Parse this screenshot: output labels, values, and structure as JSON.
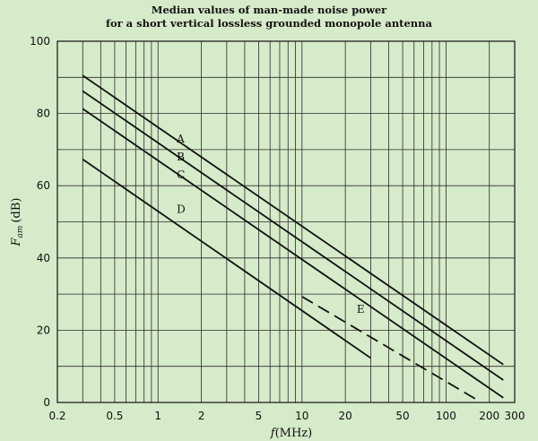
{
  "chart_data": {
    "type": "line",
    "title_line1": "Median values of man-made noise power",
    "title_line2": "for a short vertical lossless grounded monopole antenna",
    "xlabel_main": "f",
    "xlabel_unit": "(MHz)",
    "ylabel_main": "F",
    "ylabel_sub": "am",
    "ylabel_unit": "(dB)",
    "xscale": "log",
    "xlim": [
      0.2,
      300
    ],
    "ylim": [
      0,
      100
    ],
    "grid": true,
    "x_ticks": [
      {
        "value": 0.2,
        "label": "0.2"
      },
      {
        "value": 0.5,
        "label": "0.5"
      },
      {
        "value": 1,
        "label": "1"
      },
      {
        "value": 2,
        "label": "2"
      },
      {
        "value": 5,
        "label": "5"
      },
      {
        "value": 10,
        "label": "10"
      },
      {
        "value": 20,
        "label": "20"
      },
      {
        "value": 50,
        "label": "50"
      },
      {
        "value": 100,
        "label": "100"
      },
      {
        "value": 200,
        "label": "200"
      },
      {
        "value": 300,
        "label": "300"
      }
    ],
    "y_ticks": [
      {
        "value": 0,
        "label": "0"
      },
      {
        "value": 20,
        "label": "20"
      },
      {
        "value": 40,
        "label": "40"
      },
      {
        "value": 60,
        "label": "60"
      },
      {
        "value": 80,
        "label": "80"
      },
      {
        "value": 100,
        "label": "100"
      }
    ],
    "series": [
      {
        "name": "A",
        "x": [
          0.3,
          250
        ],
        "y": [
          90.5,
          10.5
        ],
        "dashed": false,
        "label_at": [
          1.35,
          72
        ]
      },
      {
        "name": "B",
        "x": [
          0.3,
          250
        ],
        "y": [
          86.2,
          6.2
        ],
        "dashed": false,
        "label_at": [
          1.35,
          67
        ]
      },
      {
        "name": "C",
        "x": [
          0.3,
          250
        ],
        "y": [
          81.3,
          1.3
        ],
        "dashed": false,
        "label_at": [
          1.35,
          62
        ]
      },
      {
        "name": "D",
        "x": [
          0.3,
          30
        ],
        "y": [
          67.3,
          12.3
        ],
        "dashed": false,
        "label_at": [
          1.35,
          52.5
        ]
      },
      {
        "name": "E",
        "x": [
          10,
          160
        ],
        "y": [
          29.3,
          1.0
        ],
        "dashed": true,
        "label_at": [
          24,
          24.8
        ]
      }
    ]
  }
}
